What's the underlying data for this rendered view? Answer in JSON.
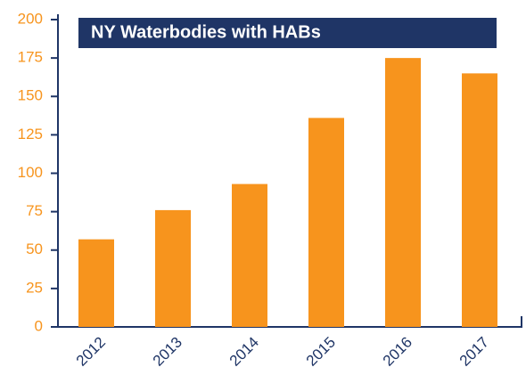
{
  "chart_data": {
    "type": "bar",
    "title": "NY Waterbodies with HABs",
    "categories": [
      "2012",
      "2013",
      "2014",
      "2015",
      "2016",
      "2017"
    ],
    "values": [
      57,
      76,
      93,
      136,
      175,
      165
    ],
    "color": "#f7941d",
    "ylim": [
      0,
      200
    ],
    "yticks": [
      0,
      25,
      50,
      75,
      100,
      125,
      150,
      175,
      200
    ]
  }
}
